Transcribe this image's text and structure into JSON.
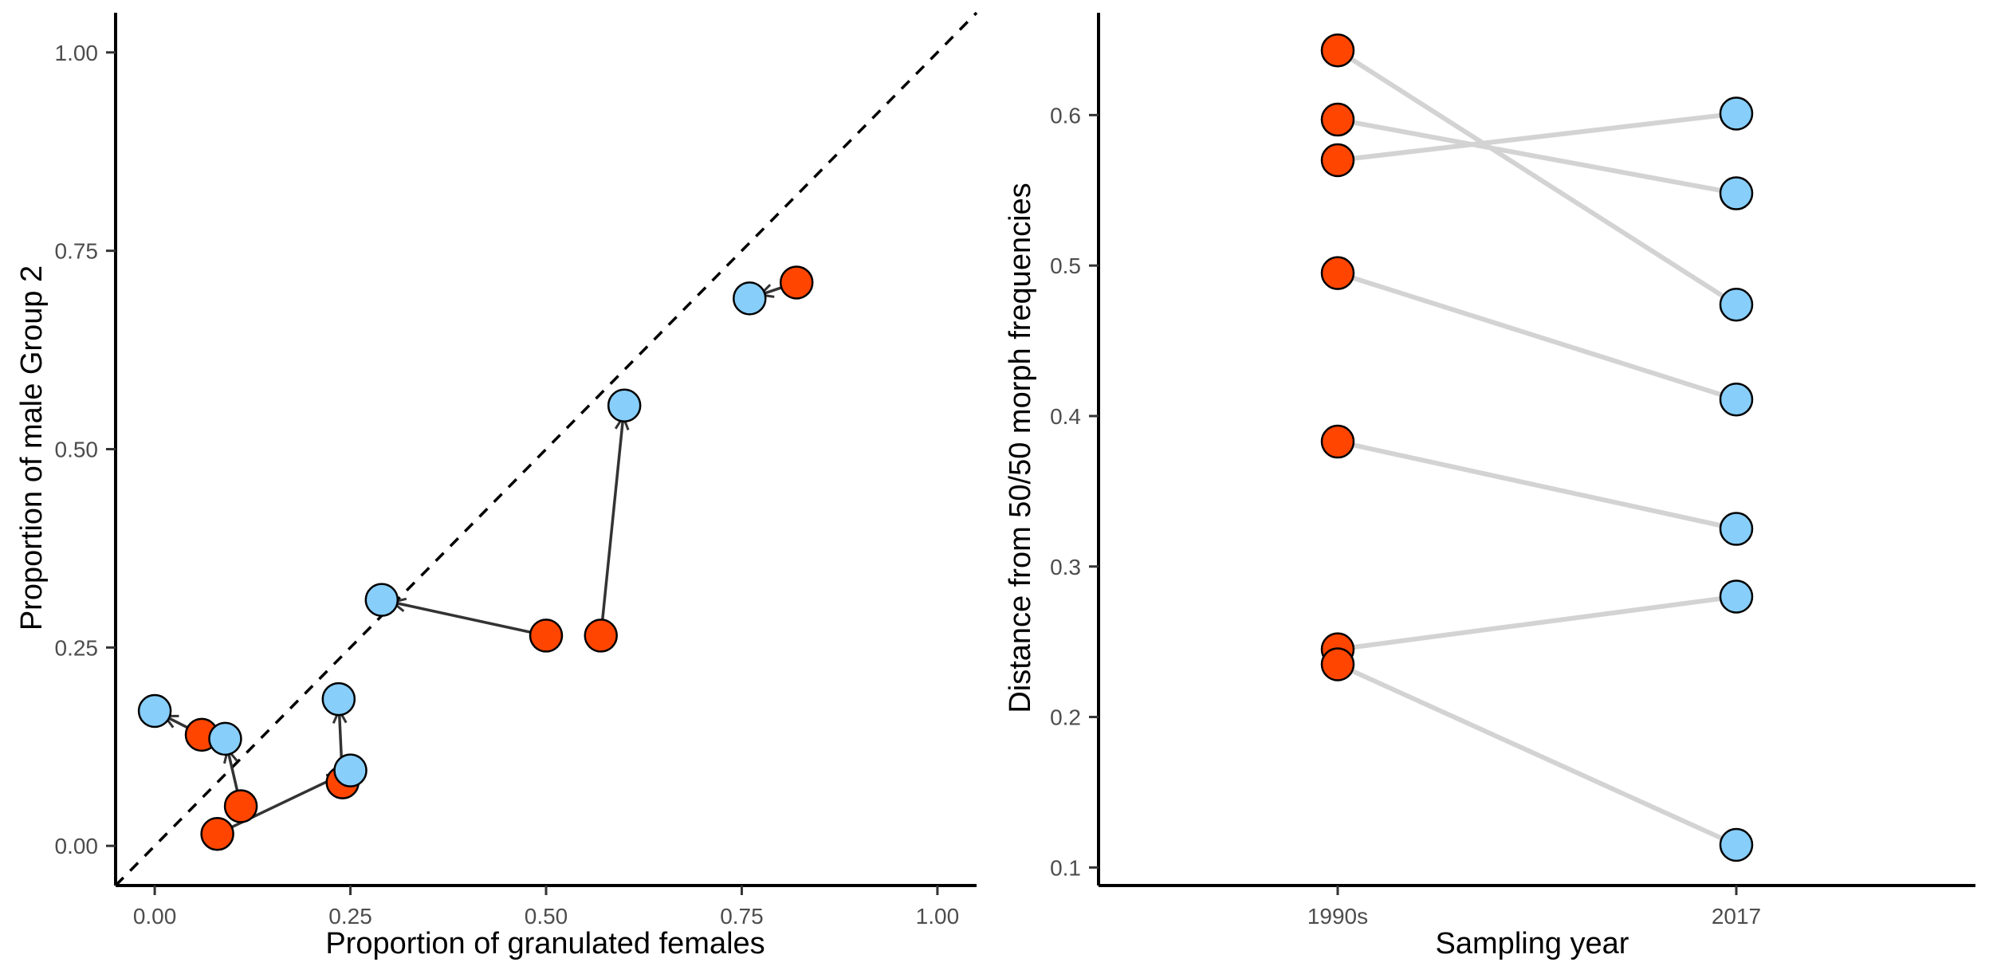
{
  "chart_data": [
    {
      "type": "scatter",
      "subtype": "arrow-scatter",
      "xlabel": "Proportion of granulated females",
      "ylabel": "Proportion of male Group 2",
      "xlim": [
        -0.05,
        1.05
      ],
      "ylim": [
        -0.05,
        1.05
      ],
      "xticks": [
        0.0,
        0.25,
        0.5,
        0.75,
        1.0
      ],
      "xtick_labels": [
        "0.00",
        "0.25",
        "0.50",
        "0.75",
        "1.00"
      ],
      "yticks": [
        0.0,
        0.25,
        0.5,
        0.75,
        1.0
      ],
      "ytick_labels": [
        "0.00",
        "0.25",
        "0.50",
        "0.75",
        "1.00"
      ],
      "reference_line": {
        "style": "dashed",
        "slope": 1,
        "intercept": 0
      },
      "grid": false,
      "series": [
        {
          "name": "1990s",
          "color": "#FF4500"
        },
        {
          "name": "2017",
          "color": "#87CEFA"
        }
      ],
      "pairs": [
        {
          "from": [
            0.06,
            0.14
          ],
          "to": [
            0.0,
            0.17
          ]
        },
        {
          "from": [
            0.11,
            0.05
          ],
          "to": [
            0.09,
            0.135
          ]
        },
        {
          "from": [
            0.08,
            0.015
          ],
          "to": [
            0.25,
            0.095
          ]
        },
        {
          "from": [
            0.24,
            0.08
          ],
          "to": [
            0.235,
            0.185
          ]
        },
        {
          "from": [
            0.5,
            0.265
          ],
          "to": [
            0.29,
            0.31
          ]
        },
        {
          "from": [
            0.57,
            0.265
          ],
          "to": [
            0.6,
            0.555
          ]
        },
        {
          "from": [
            0.82,
            0.71
          ],
          "to": [
            0.76,
            0.69
          ]
        }
      ]
    },
    {
      "type": "line",
      "subtype": "slopegraph",
      "xlabel": "Sampling year",
      "ylabel": "Distance from 50/50 morph frequencies",
      "categories": [
        "1990s",
        "2017"
      ],
      "ylim": [
        0.088,
        0.668
      ],
      "yticks": [
        0.1,
        0.2,
        0.3,
        0.4,
        0.5,
        0.6
      ],
      "ytick_labels": [
        "0.1",
        "0.2",
        "0.3",
        "0.4",
        "0.5",
        "0.6"
      ],
      "grid": false,
      "series_colors": {
        "1990s": "#FF4500",
        "2017": "#87CEFA"
      },
      "pairs": [
        {
          "start": 0.643,
          "end": 0.474
        },
        {
          "start": 0.597,
          "end": 0.548
        },
        {
          "start": 0.57,
          "end": 0.601
        },
        {
          "start": 0.495,
          "end": 0.411
        },
        {
          "start": 0.383,
          "end": 0.325
        },
        {
          "start": 0.245,
          "end": 0.28
        },
        {
          "start": 0.235,
          "end": 0.115
        }
      ]
    }
  ]
}
